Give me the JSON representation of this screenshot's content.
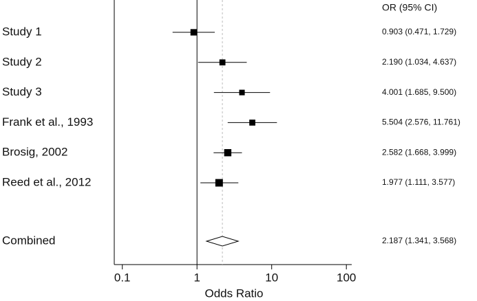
{
  "chart_data": {
    "type": "forest",
    "header": "OR (95% CI)",
    "xlabel": "Odds Ratio",
    "categories": [
      "Study 1",
      "Study 2",
      "Study 3",
      "Frank et al., 1993",
      "Brosig, 2002",
      "Reed et al., 2012"
    ],
    "values": [
      0.903,
      2.19,
      4.001,
      5.504,
      2.582,
      1.977
    ],
    "lower": [
      0.471,
      1.034,
      1.685,
      2.576,
      1.668,
      1.111
    ],
    "upper": [
      1.729,
      4.637,
      9.5,
      11.761,
      3.999,
      3.577
    ],
    "value_labels": [
      "0.903 (0.471, 1.729)",
      "2.190 (1.034, 4.637)",
      "4.001 (1.685, 9.500)",
      "5.504 (2.576, 11.761)",
      "2.582 (1.668, 3.999)",
      "1.977 (1.111, 3.577)"
    ],
    "weights": [
      8,
      7,
      6,
      7,
      10,
      11
    ],
    "summary": {
      "name": "Combined",
      "value": 2.187,
      "lower": 1.341,
      "upper": 3.568,
      "value_label": "2.187 (1.341, 3.568)"
    },
    "reference_line": 1,
    "xlim": [
      0.078,
      118
    ],
    "xticks": [
      0.1,
      1,
      10,
      100
    ],
    "log_x": true,
    "color": "#000000"
  }
}
